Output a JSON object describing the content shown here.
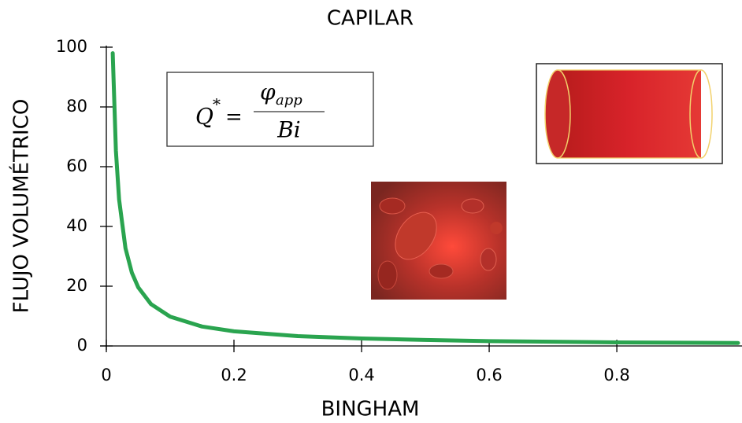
{
  "chart_data": {
    "type": "line",
    "title": "CAPILAR",
    "x_label": "BINGHAM",
    "y_label": "FLUJO VOLUMÉTRICO",
    "annotation": {
      "lhs": "Q",
      "sup": "*",
      "eq": "=",
      "numerator": "φ",
      "numerator_sub": "app",
      "denominator": "Bi"
    },
    "x": [
      0.01,
      0.015,
      0.02,
      0.03,
      0.04,
      0.05,
      0.07,
      0.1,
      0.15,
      0.2,
      0.3,
      0.4,
      0.5,
      0.6,
      0.7,
      0.8,
      0.9,
      0.99
    ],
    "series": [
      {
        "color": "#2aa44f",
        "values": [
          98,
          65.3,
          49,
          32.7,
          24.5,
          19.6,
          14,
          9.8,
          6.5,
          4.9,
          3.3,
          2.5,
          2,
          1.6,
          1.4,
          1.2,
          1.1,
          1
        ]
      }
    ],
    "xlim": [
      0,
      0.99
    ],
    "xticks": [
      0,
      0.2,
      0.4,
      0.6,
      0.8
    ],
    "ylim": [
      0,
      100
    ],
    "yticks": [
      0,
      20,
      40,
      60,
      80,
      100
    ]
  }
}
